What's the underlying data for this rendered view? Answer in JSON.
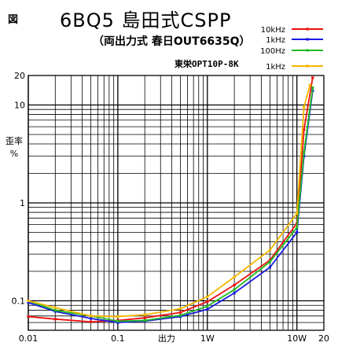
{
  "header": {
    "fig_label": "図",
    "title": "6BQ5 島田式CSPP",
    "subtitle": "（両出力式 春日OUT6635Q）",
    "transformer": "東栄OPT10P-8K"
  },
  "chart_data": {
    "type": "line",
    "ylabel_lines": [
      "歪率",
      "%"
    ],
    "xlabel": "出力",
    "x_scale": "log",
    "y_scale": "log",
    "xlim": [
      0.01,
      20
    ],
    "ylim": [
      0.05,
      20
    ],
    "grid": true,
    "legend_position": "top-right",
    "x_tick_labels": [
      {
        "value": 0.01,
        "label": "0.01"
      },
      {
        "value": 0.1,
        "label": "0.1"
      },
      {
        "value": 1,
        "label": "1W"
      },
      {
        "value": 10,
        "label": "10W"
      },
      {
        "value": 20,
        "label": "20"
      }
    ],
    "y_tick_labels": [
      {
        "value": 0.1,
        "label": "0.1"
      },
      {
        "value": 1,
        "label": "1"
      },
      {
        "value": 10,
        "label": "10"
      },
      {
        "value": 20,
        "label": "20"
      }
    ],
    "series": [
      {
        "name": "10kHz",
        "color": "#ee1111",
        "points": [
          [
            0.01,
            0.069
          ],
          [
            0.02,
            0.065
          ],
          [
            0.05,
            0.061
          ],
          [
            0.1,
            0.063
          ],
          [
            0.2,
            0.067
          ],
          [
            0.5,
            0.076
          ],
          [
            1,
            0.098
          ],
          [
            2,
            0.145
          ],
          [
            5,
            0.26
          ],
          [
            10,
            0.62
          ],
          [
            12,
            5.6
          ],
          [
            15,
            19
          ]
        ]
      },
      {
        "name": "1kHz",
        "color": "#1a1ae0",
        "points": [
          [
            0.01,
            0.096
          ],
          [
            0.02,
            0.078
          ],
          [
            0.05,
            0.066
          ],
          [
            0.1,
            0.06
          ],
          [
            0.2,
            0.062
          ],
          [
            0.5,
            0.069
          ],
          [
            1,
            0.082
          ],
          [
            2,
            0.12
          ],
          [
            5,
            0.22
          ],
          [
            10,
            0.5
          ],
          [
            12,
            3
          ],
          [
            15,
            14
          ]
        ]
      },
      {
        "name": "100Hz",
        "color": "#22bb22",
        "points": [
          [
            0.01,
            0.1
          ],
          [
            0.02,
            0.08
          ],
          [
            0.05,
            0.07
          ],
          [
            0.1,
            0.062
          ],
          [
            0.2,
            0.063
          ],
          [
            0.5,
            0.071
          ],
          [
            1,
            0.088
          ],
          [
            2,
            0.13
          ],
          [
            5,
            0.25
          ],
          [
            10,
            0.56
          ],
          [
            12,
            3.3
          ],
          [
            15,
            15
          ]
        ]
      },
      {
        "name": "1kHz",
        "color": "#f5b800",
        "points": [
          [
            0.01,
            0.1
          ],
          [
            0.02,
            0.085
          ],
          [
            0.05,
            0.07
          ],
          [
            0.1,
            0.069
          ],
          [
            0.2,
            0.072
          ],
          [
            0.5,
            0.083
          ],
          [
            1,
            0.11
          ],
          [
            2,
            0.175
          ],
          [
            5,
            0.33
          ],
          [
            10,
            0.78
          ],
          [
            12,
            9.5
          ],
          [
            14,
            16
          ]
        ]
      }
    ]
  }
}
